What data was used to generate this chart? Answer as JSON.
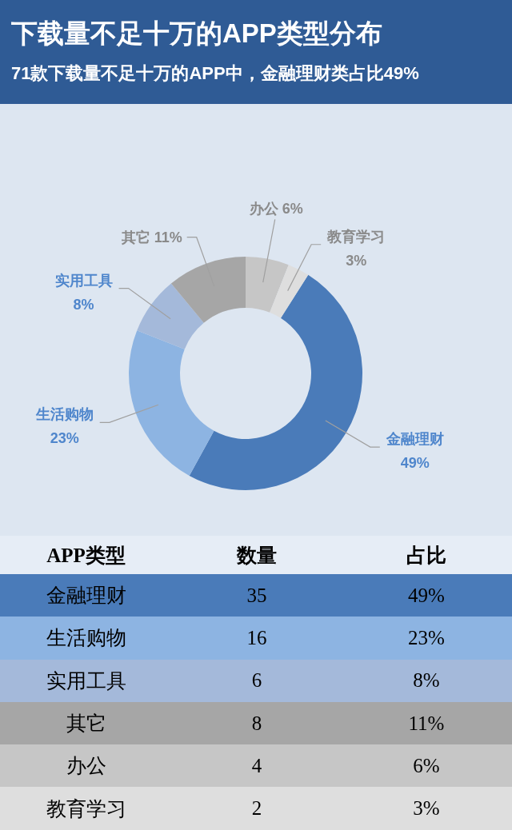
{
  "chart_data": {
    "type": "donut",
    "title": "下载量不足十万的APP类型分布",
    "subtitle": "71款下载量不足十万的APP中，金融理财类占比49%",
    "categories": [
      "金融理财",
      "生活购物",
      "实用工具",
      "其它",
      "办公",
      "教育学习"
    ],
    "values": [
      49,
      23,
      8,
      11,
      6,
      3
    ],
    "value_labels": [
      "49%",
      "23%",
      "8%",
      "11%",
      "6%",
      "3%"
    ],
    "colors": [
      "#4a7bb9",
      "#8db4e2",
      "#a4b9da",
      "#a6a6a6",
      "#c6c6c6",
      "#dedede"
    ],
    "annotations": [
      "APP类型",
      "数量",
      "占比",
      "35",
      "16",
      "6",
      "8",
      "4",
      "2"
    ]
  }
}
